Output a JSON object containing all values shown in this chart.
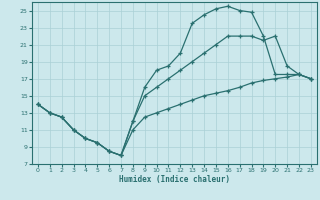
{
  "xlabel": "Humidex (Indice chaleur)",
  "bg_color": "#cce8ec",
  "grid_color": "#aad0d6",
  "line_color": "#2a7070",
  "xlim": [
    -0.5,
    23.5
  ],
  "ylim": [
    7,
    26
  ],
  "yticks": [
    7,
    9,
    11,
    13,
    15,
    17,
    19,
    21,
    23,
    25
  ],
  "xticks": [
    0,
    1,
    2,
    3,
    4,
    5,
    6,
    7,
    8,
    9,
    10,
    11,
    12,
    13,
    14,
    15,
    16,
    17,
    18,
    19,
    20,
    21,
    22,
    23
  ],
  "line1_x": [
    0,
    1,
    2,
    3,
    4,
    5,
    6,
    7,
    8,
    9,
    10,
    11,
    12,
    13,
    14,
    15,
    16,
    17,
    18,
    19,
    20,
    21,
    22,
    23
  ],
  "line1_y": [
    14,
    13,
    12.5,
    11,
    10,
    9.5,
    8.5,
    8,
    12,
    16,
    18,
    18.5,
    20,
    23.5,
    24.5,
    25.2,
    25.5,
    25.0,
    24.8,
    22.0,
    17.5,
    17.5,
    17.5,
    17
  ],
  "line2_x": [
    0,
    1,
    2,
    3,
    4,
    5,
    6,
    7,
    8,
    9,
    10,
    11,
    12,
    13,
    14,
    15,
    16,
    17,
    18,
    19,
    20,
    21,
    22,
    23
  ],
  "line2_y": [
    14,
    13,
    12.5,
    11,
    10,
    9.5,
    8.5,
    8,
    11,
    12.5,
    13,
    13.5,
    14,
    14.5,
    15,
    15.3,
    15.6,
    16,
    16.5,
    16.8,
    17.0,
    17.2,
    17.5,
    17
  ],
  "line3_x": [
    0,
    1,
    2,
    3,
    4,
    5,
    6,
    7,
    8,
    9,
    10,
    11,
    12,
    13,
    14,
    15,
    16,
    17,
    18,
    19,
    20,
    21,
    22,
    23
  ],
  "line3_y": [
    14,
    13,
    12.5,
    11,
    10,
    9.5,
    8.5,
    8,
    12,
    15,
    16,
    17,
    18,
    19,
    20,
    21,
    22,
    22,
    22,
    21.5,
    22,
    18.5,
    17.5,
    17
  ]
}
